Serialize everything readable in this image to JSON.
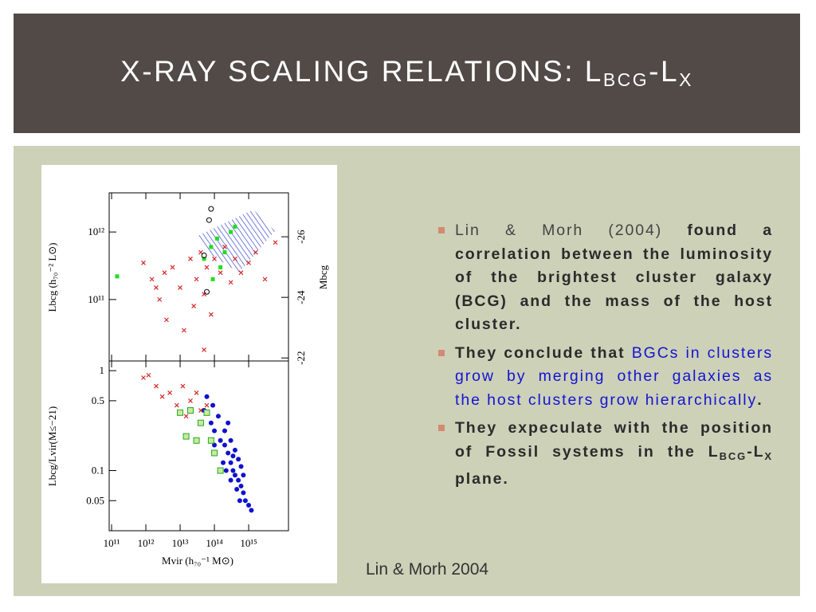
{
  "slide": {
    "title": [
      "X-RAY SCALING RELATIONS: L",
      "BCG",
      "-L",
      "X"
    ],
    "bullets": [
      [
        "Lin & Morh (2004)",
        "found a correlation between the luminosity of the brightest cluster galaxy (BCG) and the mass of the host cluster."
      ],
      [
        "They conclude that",
        "BGCs in clusters grow by merging other galaxies as the host clusters grow hierarchically",
        "."
      ],
      [
        "They expeculate with the position of Fossil systems in the",
        "L",
        "BCG",
        "-L",
        "X",
        "plane."
      ]
    ],
    "caption": "Lin & Morh 2004"
  },
  "figure": {
    "type": "scatter",
    "x_label": "Mvir (h₇₀⁻¹ M⊙)",
    "xscale": "log",
    "xlim": [
      85000000000.0,
      1.45e+16
    ],
    "xticks": [
      {
        "value": 100000000000.0,
        "label": "10¹¹"
      },
      {
        "value": 1000000000000.0,
        "label": "10¹²"
      },
      {
        "value": 10000000000000.0,
        "label": "10¹³"
      },
      {
        "value": 100000000000000.0,
        "label": "10¹⁴"
      },
      {
        "value": 1000000000000000.0,
        "label": "10¹⁵"
      }
    ],
    "panels": [
      {
        "y_label": "Lbcg (h₇₀⁻² L⊙)",
        "yscale": "log",
        "ylim": [
          12300000000.0,
          3800000000000.0
        ],
        "yticks": [
          {
            "value": 100000000000.0,
            "label": "10¹¹"
          },
          {
            "value": 1000000000000.0,
            "label": "10¹²"
          }
        ],
        "y2_label": "Mbcg",
        "y2lim": [
          -21.9,
          -27.45
        ],
        "y2ticks": [
          -26,
          -24,
          -22
        ],
        "series": [
          {
            "marker": "cross",
            "color": "#d62728",
            "x": [
              850000000000.0,
              1500000000000.0,
              2500000000000.0,
              4000000000000.0,
              6000000000000.0,
              10000000000000.0,
              13000000000000.0,
              20000000000000.0,
              25000000000000.0,
              30000000000000.0,
              40000000000000.0,
              50000000000000.0,
              60000000000000.0,
              80000000000000.0,
              100000000000000.0,
              150000000000000.0,
              200000000000000.0,
              300000000000000.0,
              400000000000000.0,
              600000000000000.0,
              1000000000000000.0,
              1600000000000000.0,
              3000000000000000.0,
              6000000000000000.0,
              50000000000000.0,
              2000000000000.0,
              3500000000000.0
            ],
            "values": [
              350000000000.0,
              200000000000.0,
              100000000000.0,
              50000000000.0,
              300000000000.0,
              150000000000.0,
              35000000000.0,
              400000000000.0,
              80000000000.0,
              200000000000.0,
              500000000000.0,
              120000000000.0,
              300000000000.0,
              60000000000.0,
              400000000000.0,
              250000000000.0,
              600000000000.0,
              180000000000.0,
              400000000000.0,
              250000000000.0,
              350000000000.0,
              500000000000.0,
              200000000000.0,
              700000000000.0,
              18000000000.0,
              150000000000.0,
              250000000000.0
            ]
          },
          {
            "marker": "square",
            "color": "#22dd22",
            "x": [
              145000000000.0,
              50000000000000.0,
              80000000000000.0,
              120000000000000.0,
              200000000000000.0,
              300000000000000.0,
              150000000000000.0,
              400000000000000.0,
              90000000000000.0
            ],
            "values": [
              220000000000.0,
              400000000000.0,
              600000000000.0,
              800000000000.0,
              500000000000.0,
              1000000000000.0,
              300000000000.0,
              1200000000000.0,
              200000000000.0
            ]
          },
          {
            "marker": "circle",
            "color": "#000000",
            "x": [
              80000000000000.0,
              70000000000000.0,
              50000000000000.0,
              60000000000000.0
            ],
            "values": [
              2200000000000.0,
              1500000000000.0,
              450000000000.0,
              130000000000.0
            ]
          }
        ]
      },
      {
        "y_label": "Lbcg/Lvir(M≤−21)",
        "yscale": "log",
        "ylim": [
          0.025,
          1.25
        ],
        "yticks": [
          1,
          0.5,
          0.1,
          0.05
        ],
        "series": [
          {
            "marker": "cross",
            "color": "#d62728",
            "x": [
              850000000000.0,
              1200000000000.0,
              2000000000000.0,
              3000000000000.0,
              5000000000000.0,
              8000000000000.0,
              12000000000000.0,
              20000000000000.0,
              30000000000000.0,
              40000000000000.0,
              15000000000000.0,
              60000000000000.0
            ],
            "values": [
              0.85,
              0.9,
              0.7,
              0.55,
              0.6,
              0.45,
              0.7,
              0.5,
              0.6,
              0.4,
              0.35,
              0.45
            ]
          },
          {
            "marker": "dot",
            "color": "#1010d0",
            "x": [
              50000000000000.0,
              80000000000000.0,
              100000000000000.0,
              130000000000000.0,
              150000000000000.0,
              200000000000000.0,
              250000000000000.0,
              300000000000000.0,
              350000000000000.0,
              400000000000000.0,
              500000000000000.0,
              600000000000000.0,
              700000000000000.0,
              800000000000000.0,
              1000000000000000.0,
              1200000000000000.0,
              200000000000000.0,
              300000000000000.0,
              400000000000000.0,
              500000000000000.0,
              600000000000000.0,
              300000000000000.0,
              250000000000000.0,
              180000000000000.0,
              450000000000000.0,
              700000000000000.0,
              100000000000000.0,
              60000000000000.0,
              90000000000000.0,
              350000000000000.0,
              550000000000000.0,
              220000000000000.0
            ],
            "values": [
              0.4,
              0.3,
              0.25,
              0.35,
              0.2,
              0.18,
              0.15,
              0.12,
              0.1,
              0.09,
              0.08,
              0.07,
              0.06,
              0.05,
              0.045,
              0.04,
              0.25,
              0.2,
              0.16,
              0.13,
              0.11,
              0.08,
              0.3,
              0.12,
              0.065,
              0.09,
              0.18,
              0.55,
              0.45,
              0.14,
              0.05,
              0.1
            ]
          },
          {
            "marker": "boxed",
            "color": "#22aa22",
            "x": [
              10000000000000.0,
              20000000000000.0,
              40000000000000.0,
              60000000000000.0,
              15000000000000.0,
              30000000000000.0,
              100000000000000.0,
              150000000000000.0,
              80000000000000.0
            ],
            "values": [
              0.38,
              0.4,
              0.3,
              0.38,
              0.22,
              0.2,
              0.15,
              0.1,
              0.2
            ]
          }
        ]
      }
    ]
  }
}
